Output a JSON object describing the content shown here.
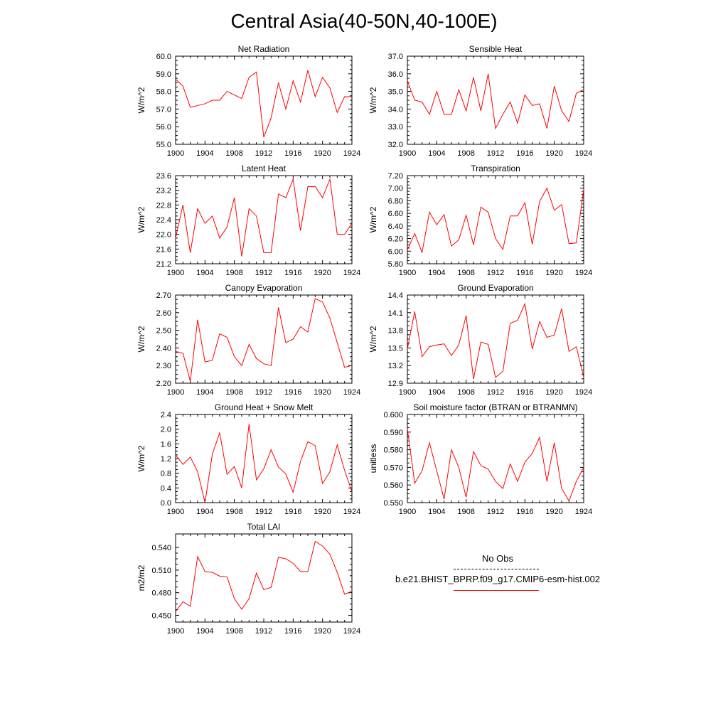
{
  "title": "Central Asia(40-50N,40-100E)",
  "legend": {
    "items": [
      {
        "label": "No Obs",
        "color": "#000000",
        "dash": true
      },
      {
        "label": "b.e21.BHIST_BPRP.f09_g17.CMIP6-esm-hist.002",
        "color": "#ff0000",
        "dash": false
      }
    ]
  },
  "chart_data": [
    {
      "type": "line",
      "title": "Net Radiation",
      "xlabel": "",
      "ylabel": "W/m^2",
      "xlim": [
        1900,
        1924
      ],
      "ylim": [
        55.0,
        60.0
      ],
      "xticks": [
        "1900",
        "1904",
        "1908",
        "1912",
        "1916",
        "1920",
        "1924"
      ],
      "yticks": [
        "55.0",
        "56.0",
        "57.0",
        "58.0",
        "59.0",
        "60.0"
      ],
      "series": [
        {
          "color": "#ff0000",
          "x": [
            1900,
            1901,
            1902,
            1903,
            1904,
            1905,
            1906,
            1907,
            1908,
            1909,
            1910,
            1911,
            1912,
            1913,
            1914,
            1915,
            1916,
            1917,
            1918,
            1919,
            1920,
            1921,
            1922,
            1923,
            1924
          ],
          "values": [
            58.7,
            58.3,
            57.1,
            57.2,
            57.3,
            57.5,
            57.5,
            58.0,
            57.8,
            57.6,
            58.8,
            59.1,
            55.4,
            56.5,
            58.5,
            57.0,
            58.6,
            57.4,
            59.2,
            57.7,
            58.8,
            58.2,
            56.8,
            57.7,
            57.7
          ]
        }
      ]
    },
    {
      "type": "line",
      "title": "Sensible Heat",
      "xlabel": "",
      "ylabel": "W/m^2",
      "xlim": [
        1900,
        1924
      ],
      "ylim": [
        32.0,
        37.0
      ],
      "xticks": [
        "1900",
        "1904",
        "1908",
        "1912",
        "1916",
        "1920",
        "1924"
      ],
      "yticks": [
        "32.0",
        "33.0",
        "34.0",
        "35.0",
        "36.0",
        "37.0"
      ],
      "series": [
        {
          "color": "#ff0000",
          "x": [
            1900,
            1901,
            1902,
            1903,
            1904,
            1905,
            1906,
            1907,
            1908,
            1909,
            1910,
            1911,
            1912,
            1913,
            1914,
            1915,
            1916,
            1917,
            1918,
            1919,
            1920,
            1921,
            1922,
            1923,
            1924
          ],
          "values": [
            35.6,
            34.5,
            34.4,
            33.7,
            35.0,
            33.7,
            33.7,
            35.1,
            33.9,
            35.8,
            33.9,
            36.0,
            32.9,
            33.7,
            34.4,
            33.2,
            34.8,
            34.2,
            34.3,
            32.9,
            35.3,
            33.9,
            33.3,
            34.9,
            35.1
          ]
        }
      ]
    },
    {
      "type": "line",
      "title": "Latent Heat",
      "xlabel": "",
      "ylabel": "W/m^2",
      "xlim": [
        1900,
        1924
      ],
      "ylim": [
        21.2,
        23.6
      ],
      "xticks": [
        "1900",
        "1904",
        "1908",
        "1912",
        "1916",
        "1920",
        "1924"
      ],
      "yticks": [
        "21.2",
        "21.6",
        "22.0",
        "22.4",
        "22.8",
        "23.2",
        "23.6"
      ],
      "series": [
        {
          "color": "#ff0000",
          "x": [
            1900,
            1901,
            1902,
            1903,
            1904,
            1905,
            1906,
            1907,
            1908,
            1909,
            1910,
            1911,
            1912,
            1913,
            1914,
            1915,
            1916,
            1917,
            1918,
            1919,
            1920,
            1921,
            1922,
            1923,
            1924
          ],
          "values": [
            21.9,
            22.8,
            21.5,
            22.7,
            22.3,
            22.5,
            21.9,
            22.2,
            23.0,
            21.4,
            22.7,
            22.5,
            21.5,
            21.5,
            23.1,
            23.0,
            23.5,
            22.1,
            23.3,
            23.3,
            23.0,
            23.5,
            22.0,
            22.0,
            22.3
          ]
        }
      ]
    },
    {
      "type": "line",
      "title": "Transpiration",
      "xlabel": "",
      "ylabel": "W/m^2",
      "xlim": [
        1900,
        1924
      ],
      "ylim": [
        5.8,
        7.2
      ],
      "xticks": [
        "1900",
        "1904",
        "1908",
        "1912",
        "1916",
        "1920",
        "1924"
      ],
      "yticks": [
        "5.80",
        "6.00",
        "6.20",
        "6.40",
        "6.60",
        "6.80",
        "7.00",
        "7.20"
      ],
      "series": [
        {
          "color": "#ff0000",
          "x": [
            1900,
            1901,
            1902,
            1903,
            1904,
            1905,
            1906,
            1907,
            1908,
            1909,
            1910,
            1911,
            1912,
            1913,
            1914,
            1915,
            1916,
            1917,
            1918,
            1919,
            1920,
            1921,
            1922,
            1923,
            1924
          ],
          "values": [
            6.02,
            6.28,
            5.98,
            6.62,
            6.42,
            6.58,
            6.08,
            6.18,
            6.57,
            6.1,
            6.7,
            6.62,
            6.2,
            6.03,
            6.56,
            6.56,
            6.77,
            6.11,
            6.79,
            7.0,
            6.65,
            6.74,
            6.12,
            6.13,
            6.98
          ]
        }
      ]
    },
    {
      "type": "line",
      "title": "Canopy Evaporation",
      "xlabel": "",
      "ylabel": "W/m^2",
      "xlim": [
        1900,
        1924
      ],
      "ylim": [
        2.2,
        2.7
      ],
      "xticks": [
        "1900",
        "1904",
        "1908",
        "1912",
        "1916",
        "1920",
        "1924"
      ],
      "yticks": [
        "2.20",
        "2.30",
        "2.40",
        "2.50",
        "2.60",
        "2.70"
      ],
      "series": [
        {
          "color": "#ff0000",
          "x": [
            1900,
            1901,
            1902,
            1903,
            1904,
            1905,
            1906,
            1907,
            1908,
            1909,
            1910,
            1911,
            1912,
            1913,
            1914,
            1915,
            1916,
            1917,
            1918,
            1919,
            1920,
            1921,
            1922,
            1923,
            1924
          ],
          "values": [
            2.38,
            2.37,
            2.21,
            2.56,
            2.32,
            2.33,
            2.48,
            2.46,
            2.35,
            2.3,
            2.42,
            2.34,
            2.31,
            2.3,
            2.63,
            2.43,
            2.45,
            2.52,
            2.49,
            2.68,
            2.66,
            2.57,
            2.43,
            2.29,
            2.3
          ]
        }
      ]
    },
    {
      "type": "line",
      "title": "Ground Evaporation",
      "xlabel": "",
      "ylabel": "W/m^2",
      "xlim": [
        1900,
        1924
      ],
      "ylim": [
        12.9,
        14.4
      ],
      "xticks": [
        "1900",
        "1904",
        "1908",
        "1912",
        "1916",
        "1920",
        "1924"
      ],
      "yticks": [
        "12.9",
        "13.2",
        "13.5",
        "13.8",
        "14.1",
        "14.4"
      ],
      "series": [
        {
          "color": "#ff0000",
          "x": [
            1900,
            1901,
            1902,
            1903,
            1904,
            1905,
            1906,
            1907,
            1908,
            1909,
            1910,
            1911,
            1912,
            1913,
            1914,
            1915,
            1916,
            1917,
            1918,
            1919,
            1920,
            1921,
            1922,
            1923,
            1924
          ],
          "values": [
            13.48,
            14.12,
            13.35,
            13.52,
            13.55,
            13.57,
            13.37,
            13.55,
            14.05,
            12.97,
            13.6,
            13.56,
            13.0,
            13.1,
            13.92,
            13.97,
            14.25,
            13.48,
            13.95,
            13.68,
            13.72,
            14.17,
            13.44,
            13.52,
            13.0
          ]
        }
      ]
    },
    {
      "type": "line",
      "title": "Ground Heat + Snow Melt",
      "xlabel": "",
      "ylabel": "W/m^2",
      "xlim": [
        1900,
        1924
      ],
      "ylim": [
        0.0,
        2.4
      ],
      "xticks": [
        "1900",
        "1904",
        "1908",
        "1912",
        "1916",
        "1920",
        "1924"
      ],
      "yticks": [
        "0.0",
        "0.4",
        "0.8",
        "1.2",
        "1.6",
        "2.0",
        "2.4"
      ],
      "series": [
        {
          "color": "#ff0000",
          "x": [
            1900,
            1901,
            1902,
            1903,
            1904,
            1905,
            1906,
            1907,
            1908,
            1909,
            1910,
            1911,
            1912,
            1913,
            1914,
            1915,
            1916,
            1917,
            1918,
            1919,
            1920,
            1921,
            1922,
            1923,
            1924
          ],
          "values": [
            1.3,
            1.04,
            1.24,
            0.84,
            0.0,
            1.32,
            1.9,
            0.77,
            0.98,
            0.4,
            2.14,
            0.62,
            0.92,
            1.44,
            0.97,
            0.78,
            0.28,
            1.12,
            1.66,
            1.55,
            0.52,
            0.84,
            1.57,
            0.88,
            0.3
          ]
        }
      ]
    },
    {
      "type": "line",
      "title": "Soil moisture factor (BTRAN or BTRANMN)",
      "xlabel": "",
      "ylabel": "unitless",
      "xlim": [
        1900,
        1924
      ],
      "ylim": [
        0.55,
        0.6
      ],
      "xticks": [
        "1900",
        "1904",
        "1908",
        "1912",
        "1916",
        "1920",
        "1924"
      ],
      "yticks": [
        "0.550",
        "0.560",
        "0.570",
        "0.580",
        "0.590",
        "0.600"
      ],
      "series": [
        {
          "color": "#ff0000",
          "x": [
            1900,
            1901,
            1902,
            1903,
            1904,
            1905,
            1906,
            1907,
            1908,
            1909,
            1910,
            1911,
            1912,
            1913,
            1914,
            1915,
            1916,
            1917,
            1918,
            1919,
            1920,
            1921,
            1922,
            1923,
            1924
          ],
          "values": [
            0.592,
            0.561,
            0.568,
            0.584,
            0.568,
            0.552,
            0.58,
            0.57,
            0.553,
            0.579,
            0.571,
            0.569,
            0.562,
            0.558,
            0.572,
            0.562,
            0.573,
            0.578,
            0.587,
            0.562,
            0.584,
            0.558,
            0.551,
            0.562,
            0.57
          ]
        }
      ]
    },
    {
      "type": "line",
      "title": "Total LAI",
      "xlabel": "",
      "ylabel": "m2/m2",
      "xlim": [
        1900,
        1924
      ],
      "ylim": [
        0.441,
        0.558
      ],
      "xticks": [
        "1900",
        "1904",
        "1908",
        "1912",
        "1916",
        "1920",
        "1924"
      ],
      "yticks": [
        "0.450",
        "0.480",
        "0.510",
        "0.540"
      ],
      "ytick_values": [
        0.45,
        0.48,
        0.51,
        0.54
      ],
      "series": [
        {
          "color": "#ff0000",
          "x": [
            1900,
            1901,
            1902,
            1903,
            1904,
            1905,
            1906,
            1907,
            1908,
            1909,
            1910,
            1911,
            1912,
            1913,
            1914,
            1915,
            1916,
            1917,
            1918,
            1919,
            1920,
            1921,
            1922,
            1923,
            1924
          ],
          "values": [
            0.455,
            0.468,
            0.462,
            0.528,
            0.508,
            0.507,
            0.502,
            0.501,
            0.472,
            0.458,
            0.472,
            0.506,
            0.484,
            0.487,
            0.527,
            0.525,
            0.519,
            0.508,
            0.508,
            0.548,
            0.542,
            0.531,
            0.507,
            0.478,
            0.482
          ]
        }
      ]
    }
  ]
}
